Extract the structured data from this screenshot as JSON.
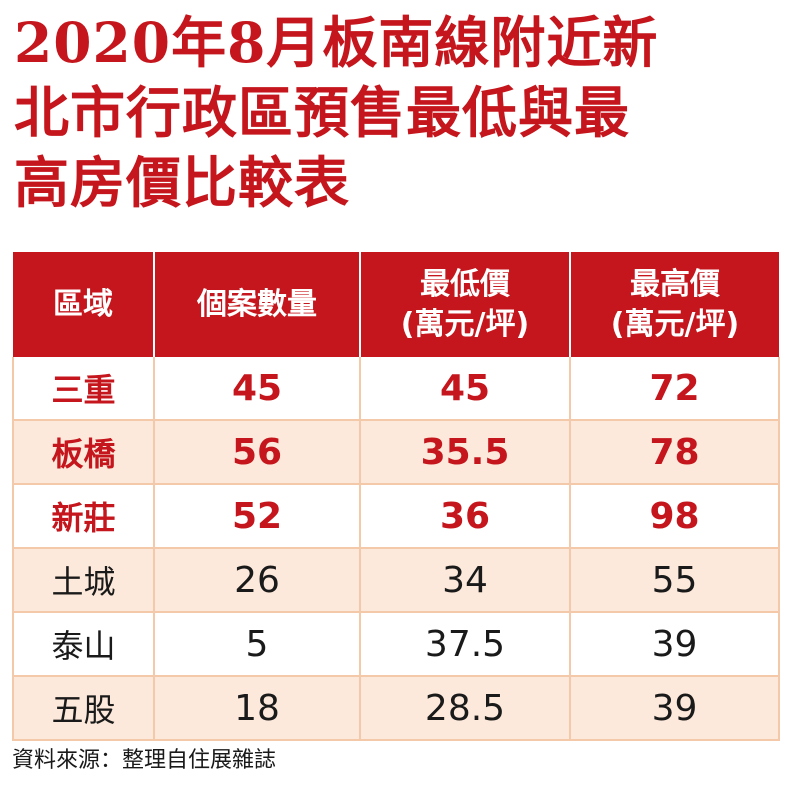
{
  "chart_data": {
    "type": "table",
    "title": [
      "2020年8月板南線附近新",
      "北市行政區預售最低與最",
      "高房價比較表"
    ],
    "columns": [
      {
        "label": "區域"
      },
      {
        "label": "個案數量"
      },
      {
        "label": "最低價",
        "unit": "(萬元/坪)"
      },
      {
        "label": "最高價",
        "unit": "(萬元/坪)"
      }
    ],
    "rows": [
      {
        "area": "三重",
        "count": "45",
        "min": "45",
        "max": "72",
        "highlight": true
      },
      {
        "area": "板橋",
        "count": "56",
        "min": "35.5",
        "max": "78",
        "highlight": true
      },
      {
        "area": "新莊",
        "count": "52",
        "min": "36",
        "max": "98",
        "highlight": true
      },
      {
        "area": "土城",
        "count": "26",
        "min": "34",
        "max": "55",
        "highlight": false
      },
      {
        "area": "泰山",
        "count": "5",
        "min": "37.5",
        "max": "39",
        "highlight": false
      },
      {
        "area": "五股",
        "count": "18",
        "min": "28.5",
        "max": "39",
        "highlight": false
      }
    ],
    "source": "資料來源：整理自住展雜誌"
  },
  "colors": {
    "accent": "#c4161c",
    "row_alt": "#fde9db",
    "grid": "#f3c9a9"
  }
}
